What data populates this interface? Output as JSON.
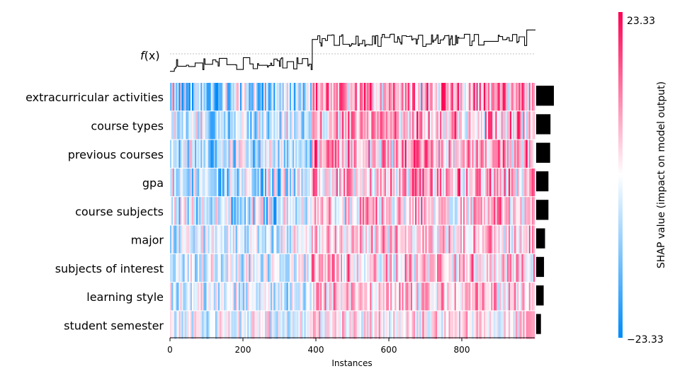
{
  "chart_data": {
    "type": "heatmap",
    "title": "",
    "xlabel": "Instances",
    "x_ticks": [
      0,
      200,
      400,
      600,
      800
    ],
    "x_range": [
      0,
      1000
    ],
    "output_label_main": "f",
    "output_label_paren": "(x)",
    "features": [
      {
        "name": "extracurricular activities",
        "mean_abs": 5.2,
        "low_strength": 0.75,
        "high_strength": 0.75
      },
      {
        "name": "course types",
        "mean_abs": 4.2,
        "low_strength": 0.6,
        "high_strength": 0.65
      },
      {
        "name": "previous courses",
        "mean_abs": 4.1,
        "low_strength": 0.55,
        "high_strength": 0.6
      },
      {
        "name": "gpa",
        "mean_abs": 3.6,
        "low_strength": 0.6,
        "high_strength": 0.55
      },
      {
        "name": "course subjects",
        "mean_abs": 3.6,
        "low_strength": 0.55,
        "high_strength": 0.5
      },
      {
        "name": "major",
        "mean_abs": 2.6,
        "low_strength": 0.35,
        "high_strength": 0.45
      },
      {
        "name": "subjects of interest",
        "mean_abs": 2.3,
        "low_strength": 0.3,
        "high_strength": 0.45
      },
      {
        "name": "learning style",
        "mean_abs": 2.2,
        "low_strength": 0.3,
        "high_strength": 0.4
      },
      {
        "name": "student semester",
        "mean_abs": 1.4,
        "low_strength": 0.2,
        "high_strength": 0.2
      }
    ],
    "split_instance": 388,
    "fx_low_level": 0.25,
    "fx_high_level": 0.7,
    "colorbar": {
      "label": "SHAP value (impact on model output)",
      "max_label": "23.33",
      "min_label": "−23.33",
      "vmin": -23.33,
      "vmax": 23.33,
      "low_color": "#008bfb",
      "mid_color": "#ffffff",
      "high_color": "#ff0052"
    },
    "bar_color": "#000000"
  }
}
